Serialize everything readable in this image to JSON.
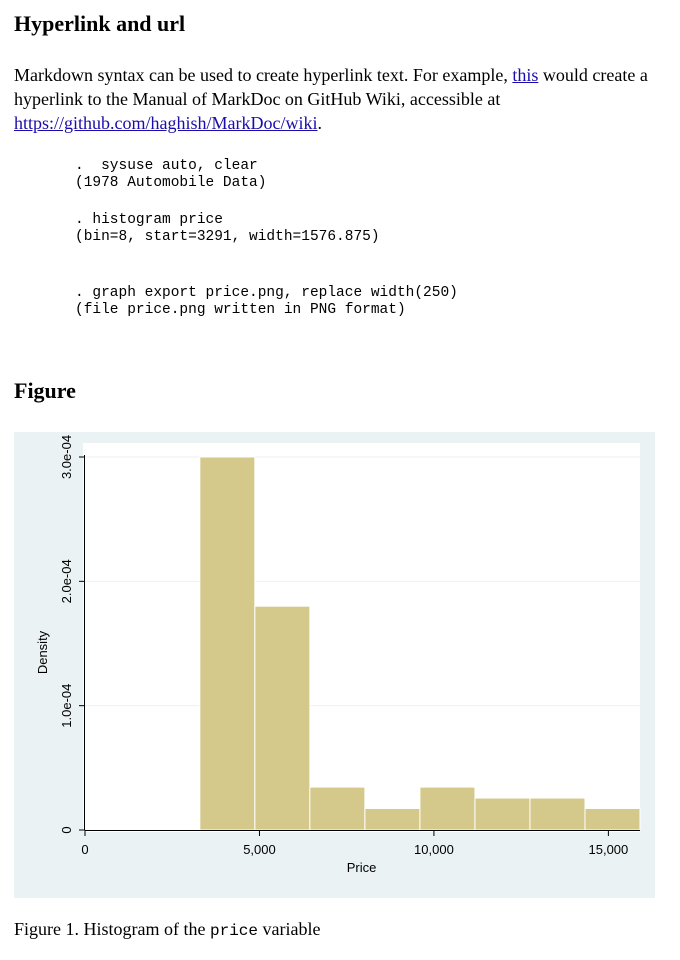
{
  "sections": {
    "hyperlink_title": "Hyperlink and url",
    "figure_title": "Figure"
  },
  "paragraph": {
    "before_link": "Markdown syntax can be used to create hyperlink text. For example, ",
    "link_text": "this",
    "after_link": " would create a hyperlink to the Manual of MarkDoc on GitHub Wiki, accessible at ",
    "url": "https://github.com/haghish/MarkDoc/wiki",
    "end": "."
  },
  "code_blocks": [
    ".  sysuse auto, clear\n(1978 Automobile Data)",
    ". histogram price\n(bin=8, start=3291, width=1576.875)",
    ". graph export price.png, replace width(250)\n(file price.png written in PNG format)"
  ],
  "caption": {
    "prefix": "Figure 1. Histogram of the ",
    "code": "price",
    "suffix": " variable"
  },
  "colors": {
    "plot_background": "#eaf2f3",
    "plot_region": "#ffffff",
    "bar_fill": "#d5c88b",
    "bar_stroke": "#ffffff",
    "gridline": "#eaf2f3",
    "link": "#1a0dab"
  },
  "chart_data": {
    "type": "bar",
    "xlabel": "Price",
    "ylabel": "Density",
    "xlim": [
      0,
      15906
    ],
    "ylim": [
      0,
      0.0003
    ],
    "xticks": [
      {
        "value": 0,
        "label": "0"
      },
      {
        "value": 5000,
        "label": "5,000"
      },
      {
        "value": 10000,
        "label": "10,000"
      },
      {
        "value": 15000,
        "label": "15,000"
      }
    ],
    "yticks": [
      {
        "value": 0,
        "label": "0"
      },
      {
        "value": 0.0001,
        "label": "1.0e-04"
      },
      {
        "value": 0.0002,
        "label": "2.0e-04"
      },
      {
        "value": 0.0003,
        "label": "3.0e-04"
      }
    ],
    "grid": true,
    "bin_start": 3291,
    "bin_width": 1576.875,
    "values": [
      0.0003,
      0.00018,
      3.45e-05,
      1.73e-05,
      3.45e-05,
      2.57e-05,
      2.57e-05,
      1.73e-05
    ]
  }
}
